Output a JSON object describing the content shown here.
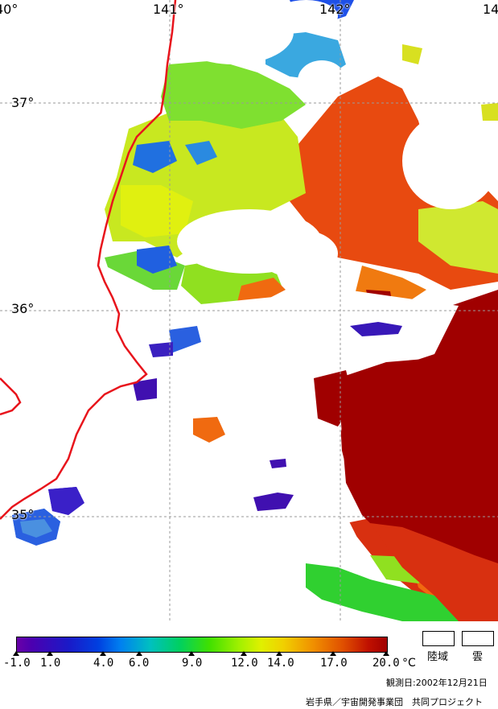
{
  "map": {
    "lon_labels": [
      "40°",
      "141°",
      "142°",
      "14"
    ],
    "lat_labels": [
      "37°",
      "36°",
      "35°"
    ],
    "colors": {
      "coastline": "#e8141c",
      "grid": "#9a9a9a",
      "cloud": "#ffffff",
      "warm": "#a00000",
      "orange": "#f06a10",
      "green": "#7fe030",
      "yellow": "#d8f010",
      "blue": "#1e50e8",
      "purple": "#4010b0"
    }
  },
  "legend": {
    "ticks": [
      "-1.0",
      "1.0",
      "4.0",
      "6.0",
      "9.0",
      "12.0",
      "14.0",
      "17.0",
      "20.0"
    ],
    "unit": "°C",
    "key_land": "陸域",
    "key_cloud": "雲"
  },
  "footer": {
    "observation_date": "観測日:2002年12月21日",
    "credit": "岩手県／宇宙開発事業団　共同プロジェクト"
  }
}
